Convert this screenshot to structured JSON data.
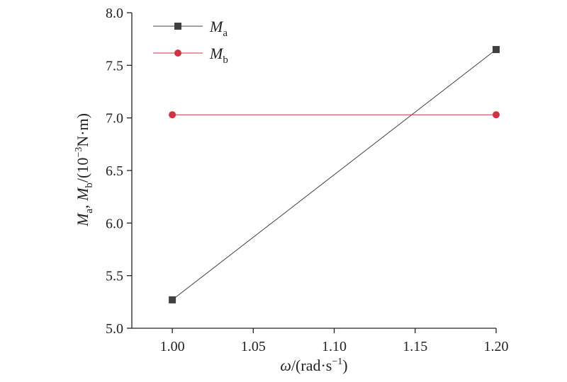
{
  "chart_data": {
    "type": "line",
    "title": "",
    "xlabel": "ω/(rad·s⁻¹)",
    "ylabel": "Ma, Mb/(10⁻³N·m)",
    "x": [
      1.0,
      1.2
    ],
    "xlim": [
      0.975,
      1.2
    ],
    "ylim": [
      5.0,
      8.0
    ],
    "xticks": [
      "1.00",
      "1.05",
      "1.10",
      "1.15",
      "1.20"
    ],
    "yticks": [
      "5.0",
      "5.5",
      "6.0",
      "6.5",
      "7.0",
      "7.5",
      "8.0"
    ],
    "series": [
      {
        "name": "Ma",
        "values": [
          5.27,
          7.65
        ],
        "color": "#404040",
        "marker": "square"
      },
      {
        "name": "Mb",
        "values": [
          7.03,
          7.03
        ],
        "color": "#d23241",
        "marker": "circle"
      }
    ],
    "legend_position": "top-left",
    "grid": false
  }
}
